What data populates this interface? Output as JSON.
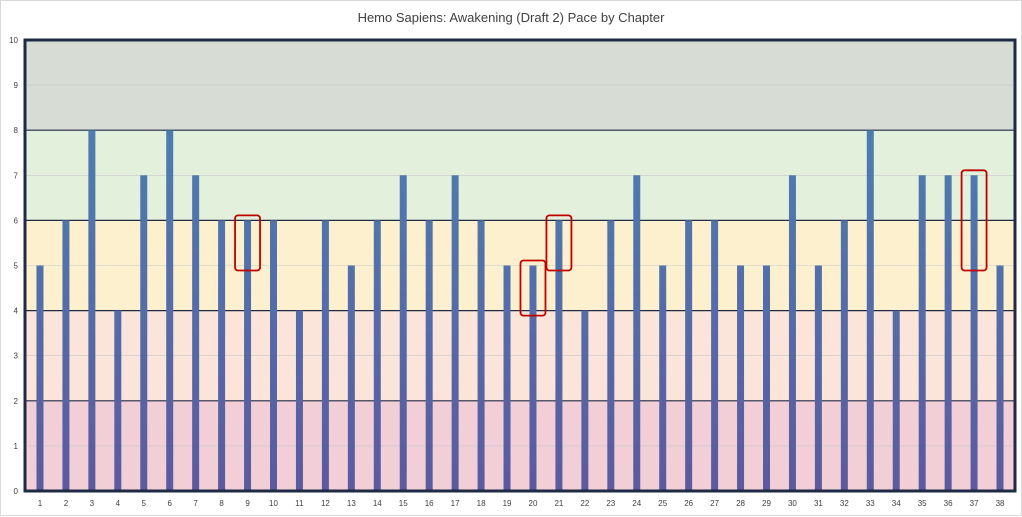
{
  "chart_data": {
    "type": "bar",
    "title": "Hemo Sapiens: Awakening (Draft 2) Pace by Chapter",
    "xlabel": "",
    "ylabel": "",
    "ylim": [
      0,
      10
    ],
    "yticks": [
      "0",
      "1",
      "2",
      "3",
      "4",
      "5",
      "6",
      "7",
      "8",
      "9",
      "10"
    ],
    "categories": [
      "1",
      "2",
      "3",
      "4",
      "5",
      "6",
      "7",
      "8",
      "9",
      "10",
      "11",
      "12",
      "13",
      "14",
      "15",
      "16",
      "17",
      "18",
      "19",
      "20",
      "21",
      "22",
      "23",
      "24",
      "25",
      "26",
      "27",
      "28",
      "29",
      "30",
      "31",
      "32",
      "33",
      "34",
      "35",
      "36",
      "37",
      "38"
    ],
    "values": [
      5,
      6,
      8,
      4,
      7,
      8,
      7,
      6,
      6,
      6,
      4,
      6,
      5,
      6,
      7,
      6,
      7,
      6,
      5,
      5,
      6,
      4,
      6,
      7,
      5,
      6,
      6,
      5,
      5,
      7,
      5,
      6,
      8,
      4,
      7,
      7,
      7,
      5
    ],
    "bands": [
      {
        "from": 0,
        "to": 2,
        "color": "#f2cfd6"
      },
      {
        "from": 2,
        "to": 4,
        "color": "#fbe5da"
      },
      {
        "from": 4,
        "to": 6,
        "color": "#fdf0cf"
      },
      {
        "from": 6,
        "to": 8,
        "color": "#e3f0dc"
      },
      {
        "from": 8,
        "to": 10,
        "color": "#d7dcd4"
      }
    ],
    "highlights": [
      {
        "category": "9",
        "from": 5,
        "to": 6
      },
      {
        "category": "20",
        "from": 4,
        "to": 5
      },
      {
        "category": "21",
        "from": 5,
        "to": 6
      },
      {
        "category": "37",
        "from": 5,
        "to": 7
      }
    ],
    "gradient_colors": {
      "top": "#4a86b4",
      "bottom": "#5b5a9e"
    },
    "highlight_color": "#c00000",
    "frame_color": "#1f2a44",
    "grid": true,
    "legend": "none"
  }
}
